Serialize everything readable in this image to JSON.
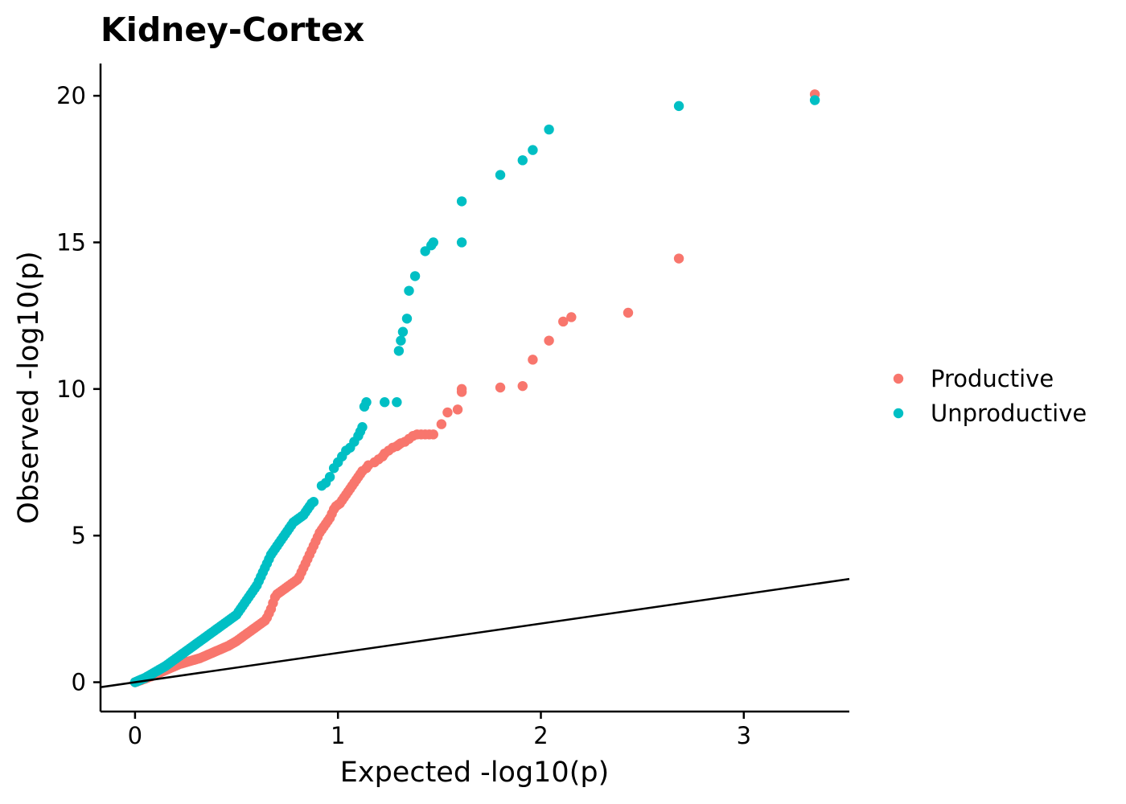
{
  "chart_data": {
    "type": "scatter",
    "title": "Kidney-Cortex",
    "xlabel": "Expected -log10(p)",
    "ylabel": "Observed -log10(p)",
    "xlim": [
      -0.17,
      3.52
    ],
    "ylim": [
      -1.0,
      21.1
    ],
    "xticks": [
      0,
      1,
      2,
      3
    ],
    "yticks": [
      0,
      5,
      10,
      15,
      20
    ],
    "xtick_labels": [
      "0",
      "1",
      "2",
      "3"
    ],
    "ytick_labels": [
      "0",
      "5",
      "10",
      "15",
      "20"
    ],
    "grid": false,
    "legend_position": "right",
    "reference_line": {
      "slope": 1,
      "intercept": 0,
      "color": "#000000"
    },
    "series": [
      {
        "name": "Productive",
        "color": "#F8766D",
        "x": [
          0.0,
          0.01,
          0.02,
          0.03,
          0.04,
          0.05,
          0.06,
          0.07,
          0.08,
          0.09,
          0.1,
          0.11,
          0.12,
          0.13,
          0.14,
          0.15,
          0.16,
          0.17,
          0.18,
          0.19,
          0.2,
          0.21,
          0.22,
          0.23,
          0.24,
          0.25,
          0.26,
          0.27,
          0.28,
          0.29,
          0.3,
          0.31,
          0.32,
          0.33,
          0.34,
          0.35,
          0.36,
          0.37,
          0.38,
          0.39,
          0.4,
          0.41,
          0.42,
          0.43,
          0.44,
          0.45,
          0.46,
          0.47,
          0.48,
          0.49,
          0.5,
          0.51,
          0.52,
          0.53,
          0.54,
          0.55,
          0.56,
          0.57,
          0.58,
          0.59,
          0.6,
          0.61,
          0.62,
          0.63,
          0.64,
          0.65,
          0.66,
          0.67,
          0.68,
          0.69,
          0.7,
          0.71,
          0.72,
          0.73,
          0.74,
          0.75,
          0.76,
          0.77,
          0.78,
          0.79,
          0.8,
          0.81,
          0.82,
          0.83,
          0.84,
          0.85,
          0.86,
          0.87,
          0.88,
          0.89,
          0.9,
          0.91,
          0.92,
          0.93,
          0.94,
          0.95,
          0.96,
          0.97,
          0.98,
          0.99,
          1.0,
          1.01,
          1.02,
          1.03,
          1.04,
          1.05,
          1.06,
          1.07,
          1.08,
          1.09,
          1.1,
          1.11,
          1.12,
          1.14,
          1.15,
          1.18,
          1.2,
          1.22,
          1.23,
          1.25,
          1.27,
          1.29,
          1.3,
          1.31,
          1.33,
          1.35,
          1.37,
          1.39,
          1.41,
          1.43,
          1.45,
          1.47,
          1.51,
          1.54,
          1.59,
          1.61,
          1.61,
          1.8,
          1.91,
          1.96,
          2.04,
          2.11,
          2.15,
          2.43,
          2.68,
          3.35
        ],
        "y": [
          0.0,
          0.02,
          0.05,
          0.07,
          0.1,
          0.12,
          0.15,
          0.18,
          0.2,
          0.23,
          0.26,
          0.29,
          0.32,
          0.35,
          0.38,
          0.41,
          0.44,
          0.47,
          0.5,
          0.53,
          0.56,
          0.59,
          0.62,
          0.64,
          0.66,
          0.68,
          0.7,
          0.72,
          0.74,
          0.76,
          0.78,
          0.8,
          0.82,
          0.85,
          0.88,
          0.91,
          0.94,
          0.97,
          1.0,
          1.03,
          1.06,
          1.09,
          1.12,
          1.15,
          1.18,
          1.21,
          1.24,
          1.28,
          1.32,
          1.36,
          1.4,
          1.45,
          1.5,
          1.55,
          1.6,
          1.65,
          1.7,
          1.75,
          1.8,
          1.85,
          1.9,
          1.95,
          2.0,
          2.05,
          2.1,
          2.2,
          2.35,
          2.5,
          2.7,
          2.9,
          3.0,
          3.05,
          3.1,
          3.15,
          3.2,
          3.25,
          3.3,
          3.35,
          3.4,
          3.45,
          3.5,
          3.6,
          3.75,
          3.9,
          4.05,
          4.2,
          4.35,
          4.5,
          4.65,
          4.8,
          4.95,
          5.1,
          5.2,
          5.3,
          5.4,
          5.5,
          5.6,
          5.75,
          5.9,
          6.0,
          6.05,
          6.1,
          6.2,
          6.3,
          6.4,
          6.5,
          6.6,
          6.7,
          6.8,
          6.9,
          7.0,
          7.1,
          7.2,
          7.3,
          7.4,
          7.5,
          7.6,
          7.7,
          7.8,
          7.9,
          8.0,
          8.05,
          8.1,
          8.15,
          8.2,
          8.3,
          8.4,
          8.45,
          8.45,
          8.45,
          8.45,
          8.45,
          8.8,
          9.2,
          9.3,
          9.9,
          10.0,
          10.05,
          10.1,
          11.0,
          11.65,
          12.3,
          12.45,
          12.6,
          14.45,
          20.05
        ],
        "points_note": ""
      },
      {
        "name": "Unproductive",
        "color": "#00BFC4",
        "x": [
          0.0,
          0.01,
          0.02,
          0.03,
          0.04,
          0.05,
          0.06,
          0.07,
          0.08,
          0.09,
          0.1,
          0.11,
          0.12,
          0.13,
          0.14,
          0.15,
          0.16,
          0.17,
          0.18,
          0.19,
          0.2,
          0.21,
          0.22,
          0.23,
          0.24,
          0.25,
          0.26,
          0.27,
          0.28,
          0.29,
          0.3,
          0.31,
          0.32,
          0.33,
          0.34,
          0.35,
          0.36,
          0.37,
          0.38,
          0.39,
          0.4,
          0.41,
          0.42,
          0.43,
          0.44,
          0.45,
          0.46,
          0.47,
          0.48,
          0.49,
          0.5,
          0.51,
          0.52,
          0.53,
          0.54,
          0.55,
          0.56,
          0.57,
          0.58,
          0.59,
          0.6,
          0.61,
          0.62,
          0.63,
          0.64,
          0.65,
          0.66,
          0.67,
          0.68,
          0.69,
          0.7,
          0.71,
          0.72,
          0.73,
          0.74,
          0.75,
          0.76,
          0.77,
          0.78,
          0.79,
          0.8,
          0.81,
          0.82,
          0.83,
          0.84,
          0.85,
          0.86,
          0.87,
          0.88,
          0.92,
          0.94,
          0.96,
          0.98,
          1.0,
          1.02,
          1.04,
          1.06,
          1.08,
          1.1,
          1.11,
          1.12,
          1.13,
          1.14,
          1.23,
          1.29,
          1.3,
          1.31,
          1.32,
          1.34,
          1.35,
          1.38,
          1.43,
          1.46,
          1.47,
          1.61,
          1.61,
          1.8,
          1.91,
          1.96,
          2.04,
          2.68,
          3.35
        ],
        "y": [
          0.0,
          0.03,
          0.06,
          0.09,
          0.12,
          0.15,
          0.19,
          0.23,
          0.27,
          0.31,
          0.35,
          0.39,
          0.43,
          0.47,
          0.51,
          0.55,
          0.6,
          0.65,
          0.7,
          0.75,
          0.8,
          0.85,
          0.9,
          0.95,
          1.0,
          1.05,
          1.1,
          1.15,
          1.2,
          1.25,
          1.3,
          1.35,
          1.4,
          1.45,
          1.5,
          1.55,
          1.6,
          1.65,
          1.7,
          1.75,
          1.8,
          1.85,
          1.9,
          1.95,
          2.0,
          2.05,
          2.1,
          2.15,
          2.2,
          2.25,
          2.3,
          2.4,
          2.5,
          2.6,
          2.7,
          2.8,
          2.9,
          3.0,
          3.1,
          3.2,
          3.3,
          3.45,
          3.6,
          3.75,
          3.9,
          4.05,
          4.2,
          4.35,
          4.45,
          4.55,
          4.65,
          4.75,
          4.85,
          4.95,
          5.05,
          5.15,
          5.25,
          5.35,
          5.45,
          5.5,
          5.55,
          5.6,
          5.65,
          5.7,
          5.8,
          5.9,
          6.0,
          6.1,
          6.15,
          6.7,
          6.8,
          7.0,
          7.3,
          7.5,
          7.7,
          7.9,
          8.0,
          8.2,
          8.4,
          8.55,
          8.7,
          9.4,
          9.55,
          9.55,
          9.55,
          11.3,
          11.65,
          11.95,
          12.4,
          13.35,
          13.85,
          14.7,
          14.9,
          15.0,
          15.0,
          16.4,
          17.3,
          17.8,
          18.15,
          18.85,
          19.65,
          19.85
        ]
      }
    ]
  }
}
